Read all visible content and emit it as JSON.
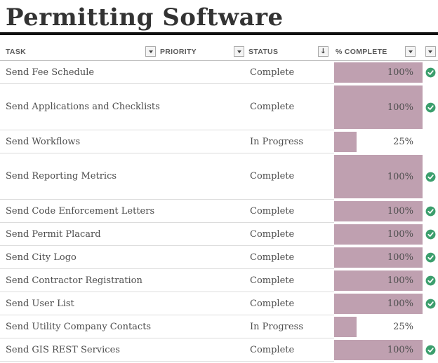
{
  "title": "Permitting Software",
  "colors": {
    "bar_fill": "#bfa0b0",
    "check_green": "#3c9e6d",
    "header_text": "#595959",
    "body_text": "#4d4d4d",
    "title_text": "#333333"
  },
  "icons": {
    "filter_dropdown": "▼",
    "sort_applied": "↓",
    "row_complete": "check-circle"
  },
  "table": {
    "columns": [
      {
        "label": "TASK",
        "control": "filter-dropdown"
      },
      {
        "label": "PRIORITY",
        "control": "filter-dropdown"
      },
      {
        "label": "STATUS",
        "control": "sort-filter-dropdown"
      },
      {
        "label": "% COMPLETE",
        "control": "filter-dropdown"
      },
      {
        "label": "",
        "control": "filter-dropdown"
      }
    ],
    "rows": [
      {
        "task": "Send Fee Schedule",
        "priority": "",
        "status": "Complete",
        "percent_label": "100%",
        "percent_value": 100,
        "checked": true,
        "tall": false
      },
      {
        "task": "Send Applications and Checklists",
        "priority": "",
        "status": "Complete",
        "percent_label": "100%",
        "percent_value": 100,
        "checked": true,
        "tall": true
      },
      {
        "task": "Send Workflows",
        "priority": "",
        "status": "In Progress",
        "percent_label": "25%",
        "percent_value": 25,
        "checked": false,
        "tall": false
      },
      {
        "task": "Send Reporting Metrics",
        "priority": "",
        "status": "Complete",
        "percent_label": "100%",
        "percent_value": 100,
        "checked": true,
        "tall": true
      },
      {
        "task": "Send Code Enforcement Letters",
        "priority": "",
        "status": "Complete",
        "percent_label": "100%",
        "percent_value": 100,
        "checked": true,
        "tall": false
      },
      {
        "task": "Send Permit Placard",
        "priority": "",
        "status": "Complete",
        "percent_label": "100%",
        "percent_value": 100,
        "checked": true,
        "tall": false
      },
      {
        "task": "Send City Logo",
        "priority": "",
        "status": "Complete",
        "percent_label": "100%",
        "percent_value": 100,
        "checked": true,
        "tall": false
      },
      {
        "task": "Send Contractor Registration",
        "priority": "",
        "status": "Complete",
        "percent_label": "100%",
        "percent_value": 100,
        "checked": true,
        "tall": false
      },
      {
        "task": "Send User List",
        "priority": "",
        "status": "Complete",
        "percent_label": "100%",
        "percent_value": 100,
        "checked": true,
        "tall": false
      },
      {
        "task": "Send Utility Company Contacts",
        "priority": "",
        "status": "In Progress",
        "percent_label": "25%",
        "percent_value": 25,
        "checked": false,
        "tall": false
      },
      {
        "task": "Send GIS REST Services",
        "priority": "",
        "status": "Complete",
        "percent_label": "100%",
        "percent_value": 100,
        "checked": true,
        "tall": false
      }
    ]
  }
}
